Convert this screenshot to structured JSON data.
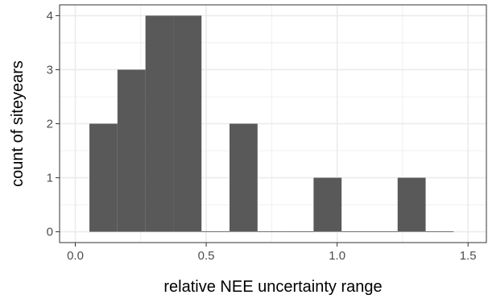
{
  "chart_data": {
    "type": "bar",
    "title": "",
    "xlabel": "relative NEE uncertainty range",
    "ylabel": "count of siteyears",
    "xlim": [
      -0.06,
      1.57
    ],
    "ylim": [
      -0.2,
      4.2
    ],
    "x_ticks": [
      0.0,
      0.5,
      1.0,
      1.5
    ],
    "x_tick_labels": [
      "0.0",
      "0.5",
      "1.0",
      "1.5"
    ],
    "y_ticks": [
      0,
      1,
      2,
      3,
      4
    ],
    "y_tick_labels": [
      "0",
      "1",
      "2",
      "3",
      "4"
    ],
    "bin_width": 0.107,
    "bins": [
      {
        "start": 0.054,
        "end": 0.161,
        "count": 2
      },
      {
        "start": 0.161,
        "end": 0.268,
        "count": 3
      },
      {
        "start": 0.268,
        "end": 0.375,
        "count": 4
      },
      {
        "start": 0.375,
        "end": 0.482,
        "count": 4
      },
      {
        "start": 0.482,
        "end": 0.589,
        "count": 0
      },
      {
        "start": 0.589,
        "end": 0.696,
        "count": 2
      },
      {
        "start": 0.696,
        "end": 0.803,
        "count": 0
      },
      {
        "start": 0.803,
        "end": 0.91,
        "count": 0
      },
      {
        "start": 0.91,
        "end": 1.017,
        "count": 1
      },
      {
        "start": 1.017,
        "end": 1.124,
        "count": 0
      },
      {
        "start": 1.124,
        "end": 1.231,
        "count": 0
      },
      {
        "start": 1.231,
        "end": 1.338,
        "count": 1
      },
      {
        "start": 1.338,
        "end": 1.445,
        "count": 0
      }
    ],
    "grid": true,
    "theme": "bw",
    "bar_color": "#595959",
    "grid_color": "#ebebeb",
    "panel_border_color": "#333333"
  }
}
